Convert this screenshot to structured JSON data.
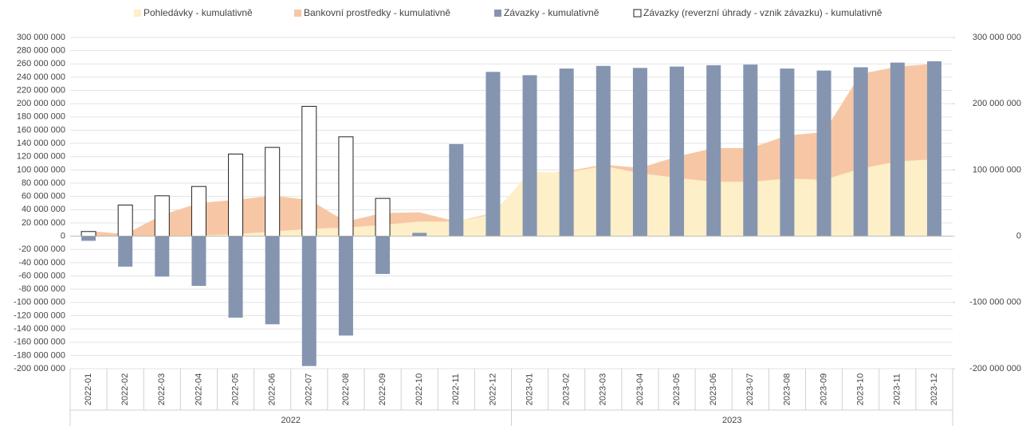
{
  "chart_data": {
    "type": "combo",
    "categories": [
      "2022-01",
      "2022-02",
      "2022-03",
      "2022-04",
      "2022-05",
      "2022-06",
      "2022-07",
      "2022-08",
      "2022-09",
      "2022-10",
      "2022-11",
      "2022-12",
      "2023-01",
      "2023-02",
      "2023-03",
      "2023-04",
      "2023-05",
      "2023-06",
      "2023-07",
      "2023-08",
      "2023-09",
      "2023-10",
      "2023-11",
      "2023-12"
    ],
    "x_groups": [
      "2022",
      "2023"
    ],
    "series": [
      {
        "name": "Pohledávky - kumulativně",
        "type": "area",
        "axis": "y2",
        "color": "#fdefc8",
        "values": [
          0,
          0,
          0,
          1000000,
          3000000,
          7000000,
          11000000,
          13000000,
          17000000,
          22000000,
          22000000,
          33000000,
          97000000,
          96000000,
          106000000,
          95000000,
          88000000,
          82000000,
          82000000,
          87000000,
          85000000,
          102000000,
          113000000,
          116000000
        ]
      },
      {
        "name": "Bankovní prostředky - kumulativně",
        "type": "area",
        "axis": "y2",
        "color": "#f7c7a5",
        "values": [
          8000000,
          3000000,
          32000000,
          50000000,
          55000000,
          61000000,
          55000000,
          22000000,
          35000000,
          36000000,
          22000000,
          35000000,
          93000000,
          98000000,
          108000000,
          103000000,
          120000000,
          133000000,
          133000000,
          152000000,
          157000000,
          245000000,
          256000000,
          260000000
        ]
      },
      {
        "name": "Závazky - kumulativně",
        "type": "bar",
        "color": "#8595b0",
        "values": [
          -7000000,
          -46000000,
          -61000000,
          -75000000,
          -123000000,
          -133000000,
          -196000000,
          -150000000,
          -57000000,
          5000000,
          139000000,
          248000000,
          243000000,
          253000000,
          257000000,
          254000000,
          256000000,
          258000000,
          259000000,
          253000000,
          250000000,
          255000000,
          262000000,
          264000000
        ]
      },
      {
        "name": "Závazky (reverzní úhrady - vznik závazku) - kumulativně",
        "type": "bar_outline",
        "color": "#222222",
        "values": [
          7000000,
          47000000,
          61000000,
          75000000,
          124000000,
          134000000,
          196000000,
          150000000,
          57000000,
          null,
          null,
          null,
          null,
          null,
          null,
          null,
          null,
          null,
          null,
          null,
          null,
          null,
          null,
          null
        ]
      }
    ],
    "ylim": [
      -200000000,
      300000000
    ],
    "yticks": [
      {
        "value": -200000000,
        "label": "-200 000 000"
      },
      {
        "value": -180000000,
        "label": "-180 000 000"
      },
      {
        "value": -160000000,
        "label": "-160 000 000"
      },
      {
        "value": -140000000,
        "label": "-140 000 000"
      },
      {
        "value": -120000000,
        "label": "-120 000 000"
      },
      {
        "value": -100000000,
        "label": "-100 000 000"
      },
      {
        "value": -80000000,
        "label": "-80 000 000"
      },
      {
        "value": -60000000,
        "label": "-60 000 000"
      },
      {
        "value": -40000000,
        "label": "-40 000 000"
      },
      {
        "value": -20000000,
        "label": "-20 000 000"
      },
      0,
      {
        "value": 20000000,
        "label": "20 000 000"
      },
      {
        "value": 40000000,
        "label": "40 000 000"
      },
      {
        "value": 60000000,
        "label": "60 000 000"
      },
      {
        "value": 80000000,
        "label": "80 000 000"
      },
      {
        "value": 100000000,
        "label": "100 000 000"
      },
      {
        "value": 120000000,
        "label": "120 000 000"
      },
      {
        "value": 140000000,
        "label": "140 000 000"
      },
      {
        "value": 160000000,
        "label": "160 000 000"
      },
      {
        "value": 180000000,
        "label": "180 000 000"
      },
      {
        "value": 200000000,
        "label": "200 000 000"
      },
      {
        "value": 220000000,
        "label": "220 000 000"
      },
      {
        "value": 240000000,
        "label": "240 000 000"
      },
      {
        "value": 260000000,
        "label": "260 000 000"
      },
      {
        "value": 280000000,
        "label": "280 000 000"
      },
      {
        "value": 300000000,
        "label": "300 000 000"
      }
    ],
    "y2lim": [
      -200000000,
      300000000
    ],
    "y2ticks": [
      {
        "value": -200000000,
        "label": "-200 000 000"
      },
      {
        "value": -100000000,
        "label": "-100 000 000"
      },
      0,
      {
        "value": 100000000,
        "label": "100 000 000"
      },
      {
        "value": 200000000,
        "label": "200 000 000"
      },
      {
        "value": 300000000,
        "label": "300 000 000"
      }
    ],
    "grid": true
  }
}
